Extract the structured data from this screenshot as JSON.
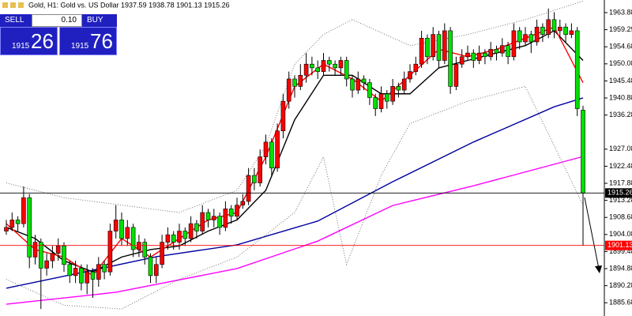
{
  "chart_data": {
    "type": "candlestick",
    "title": "Gold, H1: Gold vs. US Dollar 1937.59 1938.78 1901.13 1915.26",
    "up_color": "#ff0000",
    "down_color": "#00e000",
    "candles": [
      [
        1905,
        1908,
        1904,
        1906
      ],
      [
        1906,
        1910,
        1905,
        1908
      ],
      [
        1908,
        1909,
        1905,
        1907
      ],
      [
        1907,
        1917,
        1906,
        1914
      ],
      [
        1914,
        1915,
        1895,
        1898
      ],
      [
        1898,
        1904,
        1896,
        1902
      ],
      [
        1902,
        1903,
        1884,
        1895
      ],
      [
        1895,
        1899,
        1893,
        1897
      ],
      [
        1897,
        1901,
        1895,
        1899
      ],
      [
        1899,
        1903,
        1897,
        1901
      ],
      [
        1901,
        1902,
        1894,
        1896
      ],
      [
        1896,
        1897,
        1891,
        1893
      ],
      [
        1893,
        1897,
        1891,
        1895
      ],
      [
        1895,
        1896,
        1889,
        1891
      ],
      [
        1891,
        1896,
        1888,
        1894
      ],
      [
        1894,
        1895,
        1887,
        1892
      ],
      [
        1892,
        1898,
        1890,
        1896
      ],
      [
        1896,
        1897,
        1892,
        1894
      ],
      [
        1894,
        1907,
        1893,
        1905
      ],
      [
        1905,
        1912,
        1903,
        1908
      ],
      [
        1908,
        1910,
        1901,
        1903
      ],
      [
        1903,
        1908,
        1901,
        1906
      ],
      [
        1906,
        1907,
        1898,
        1900
      ],
      [
        1900,
        1904,
        1898,
        1902
      ],
      [
        1902,
        1903,
        1896,
        1898
      ],
      [
        1898,
        1899,
        1891,
        1893
      ],
      [
        1893,
        1898,
        1891,
        1896
      ],
      [
        1896,
        1904,
        1895,
        1902
      ],
      [
        1902,
        1906,
        1900,
        1904
      ],
      [
        1904,
        1905,
        1900,
        1902
      ],
      [
        1902,
        1907,
        1900,
        1905
      ],
      [
        1905,
        1906,
        1901,
        1903
      ],
      [
        1903,
        1909,
        1902,
        1907
      ],
      [
        1907,
        1908,
        1903,
        1905
      ],
      [
        1905,
        1912,
        1904,
        1910
      ],
      [
        1910,
        1911,
        1906,
        1908
      ],
      [
        1908,
        1911,
        1906,
        1909
      ],
      [
        1909,
        1910,
        1904,
        1906
      ],
      [
        1906,
        1913,
        1905,
        1911
      ],
      [
        1911,
        1912,
        1907,
        1909
      ],
      [
        1909,
        1914,
        1908,
        1912
      ],
      [
        1912,
        1915,
        1911,
        1913
      ],
      [
        1913,
        1922,
        1912,
        1920
      ],
      [
        1920,
        1922,
        1916,
        1918
      ],
      [
        1918,
        1927,
        1917,
        1925
      ],
      [
        1925,
        1931,
        1923,
        1929
      ],
      [
        1929,
        1930,
        1920,
        1922
      ],
      [
        1922,
        1934,
        1921,
        1932
      ],
      [
        1932,
        1942,
        1930,
        1940
      ],
      [
        1940,
        1948,
        1938,
        1946
      ],
      [
        1946,
        1947,
        1941,
        1944
      ],
      [
        1944,
        1950,
        1943,
        1947
      ],
      [
        1947,
        1953,
        1945,
        1950
      ],
      [
        1950,
        1952,
        1947,
        1949
      ],
      [
        1949,
        1951,
        1946,
        1948
      ],
      [
        1948,
        1953,
        1947,
        1951
      ],
      [
        1951,
        1952,
        1948,
        1950
      ],
      [
        1950,
        1951,
        1947,
        1949
      ],
      [
        1949,
        1952,
        1947,
        1951
      ],
      [
        1951,
        1952,
        1944,
        1946
      ],
      [
        1946,
        1947,
        1941,
        1943
      ],
      [
        1943,
        1948,
        1942,
        1946
      ],
      [
        1946,
        1947,
        1943,
        1945
      ],
      [
        1945,
        1946,
        1939,
        1941
      ],
      [
        1941,
        1942,
        1936,
        1938
      ],
      [
        1938,
        1944,
        1937,
        1942
      ],
      [
        1942,
        1943,
        1938,
        1940
      ],
      [
        1940,
        1946,
        1939,
        1944
      ],
      [
        1944,
        1945,
        1941,
        1943
      ],
      [
        1943,
        1948,
        1942,
        1946
      ],
      [
        1946,
        1950,
        1945,
        1948
      ],
      [
        1948,
        1952,
        1947,
        1950
      ],
      [
        1950,
        1959,
        1949,
        1957
      ],
      [
        1957,
        1958,
        1950,
        1952
      ],
      [
        1952,
        1960,
        1951,
        1958
      ],
      [
        1958,
        1959,
        1949,
        1951
      ],
      [
        1951,
        1961,
        1950,
        1959
      ],
      [
        1959,
        1960,
        1942,
        1944
      ],
      [
        1944,
        1952,
        1943,
        1950
      ],
      [
        1950,
        1954,
        1949,
        1952
      ],
      [
        1952,
        1955,
        1951,
        1953
      ],
      [
        1953,
        1954,
        1949,
        1951
      ],
      [
        1951,
        1955,
        1950,
        1953
      ],
      [
        1953,
        1954,
        1950,
        1952
      ],
      [
        1952,
        1956,
        1951,
        1954
      ],
      [
        1954,
        1955,
        1951,
        1953
      ],
      [
        1953,
        1957,
        1952,
        1955
      ],
      [
        1955,
        1956,
        1950,
        1952
      ],
      [
        1952,
        1961,
        1951,
        1959
      ],
      [
        1959,
        1960,
        1954,
        1956
      ],
      [
        1956,
        1960,
        1955,
        1958
      ],
      [
        1958,
        1959,
        1953,
        1956
      ],
      [
        1956,
        1962,
        1955,
        1960
      ],
      [
        1960,
        1961,
        1956,
        1958
      ],
      [
        1958,
        1965,
        1957,
        1962
      ],
      [
        1962,
        1964,
        1957,
        1959
      ],
      [
        1959,
        1962,
        1957,
        1960
      ],
      [
        1960,
        1961,
        1956,
        1958
      ],
      [
        1958,
        1961,
        1957,
        1959
      ],
      [
        1959,
        1960,
        1936,
        1938
      ],
      [
        1937.59,
        1938.78,
        1901.13,
        1915.26
      ]
    ],
    "series": [
      {
        "color": "#0000a0",
        "dash": false,
        "x": [
          0,
          13,
          26,
          40,
          54,
          67,
          81,
          95,
          100
        ],
        "values": [
          1889.6,
          1893.8,
          1898.1,
          1901.3,
          1907.7,
          1918.3,
          1929.0,
          1938.5,
          1940.9
        ]
      },
      {
        "color": "#ff00ff",
        "dash": false,
        "x": [
          0,
          19,
          40,
          54,
          67,
          81,
          100
        ],
        "values": [
          1885.3,
          1888.5,
          1894.9,
          1902.3,
          1911.9,
          1917.2,
          1925.1
        ]
      },
      {
        "color": "#000000",
        "dash": false,
        "x": [
          0,
          5,
          10,
          15,
          20,
          25,
          30,
          35,
          40,
          45,
          50,
          55,
          60,
          65,
          70,
          75,
          80,
          85,
          90,
          95,
          100
        ],
        "values": [
          1906,
          1903,
          1897,
          1894,
          1898,
          1900,
          1901,
          1905,
          1908,
          1916,
          1935,
          1947,
          1947,
          1942,
          1942,
          1949,
          1951,
          1953,
          1955,
          1959,
          1951
        ]
      },
      {
        "color": "#ff0000",
        "dash": false,
        "x": [
          0,
          5,
          10,
          15,
          20,
          25,
          30,
          35,
          40,
          45,
          50,
          55,
          60,
          65,
          70,
          75,
          80,
          85,
          90,
          95,
          100
        ],
        "values": [
          1907,
          1900,
          1898,
          1893,
          1903,
          1898,
          1903,
          1908,
          1910,
          1925,
          1944,
          1950,
          1946,
          1940,
          1947,
          1954,
          1952,
          1954,
          1957,
          1960,
          1945
        ]
      },
      {
        "color": "#555555",
        "dash": true,
        "x": [
          0,
          10,
          20,
          30,
          40,
          45,
          50,
          55,
          60,
          70,
          80,
          90,
          100
        ],
        "values": [
          1918,
          1914,
          1912,
          1910,
          1916,
          1928,
          1950,
          1958,
          1962,
          1955,
          1958,
          1962,
          1967
        ]
      },
      {
        "color": "#555555",
        "dash": true,
        "x": [
          0,
          10,
          20,
          30,
          40,
          50,
          55,
          59,
          65,
          70,
          80,
          90,
          100
        ],
        "values": [
          1892,
          1885,
          1884,
          1892,
          1898,
          1910,
          1925,
          1896,
          1920,
          1934,
          1940,
          1944,
          1912
        ]
      }
    ],
    "hlines": [
      {
        "value": 1915.26,
        "color": "#000000"
      },
      {
        "value": 1901.13,
        "color": "#ff0000"
      }
    ],
    "ylim": [
      1882.11,
      1967.29
    ],
    "yticks": [
      1963.88,
      1959.29,
      1954.68,
      1950.08,
      1945.48,
      1940.88,
      1936.28,
      1927.08,
      1922.48,
      1917.88,
      1913.28,
      1908.68,
      1904.08,
      1899.48,
      1894.88,
      1890.28,
      1885.68
    ]
  },
  "trade_panel": {
    "sell": "SELL",
    "lot": "0.10",
    "buy": "BUY",
    "bid_big": "1915",
    "bid_small": "26",
    "ask_big": "1915",
    "ask_small": "76"
  }
}
